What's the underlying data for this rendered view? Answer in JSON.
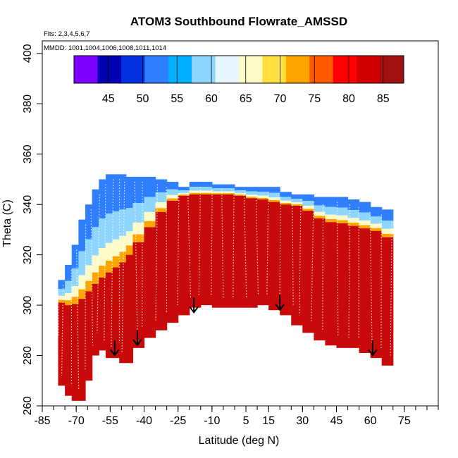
{
  "chart_data": {
    "type": "heatmap",
    "title": "ATOM3 Southbound Flowrate_AMSSD",
    "subtitle_flights": "Flts: 2,3,4,5,6,7",
    "subtitle_dates": "MMDD: 1001,1004,1006,1008,1011,1014",
    "xlabel": "Latitude (deg N)",
    "ylabel": "Theta (C)",
    "xlim": [
      -85,
      90
    ],
    "ylim": [
      260,
      405
    ],
    "x_ticks": [
      -85,
      -70,
      -55,
      -40,
      -25,
      -10,
      5,
      15,
      30,
      45,
      60,
      75
    ],
    "y_ticks": [
      260,
      280,
      300,
      320,
      340,
      360,
      380,
      400
    ],
    "colorbar": {
      "ticks": [
        45,
        50,
        55,
        60,
        65,
        70,
        75,
        80,
        85
      ],
      "range": [
        40,
        88
      ],
      "colors": [
        "#7b00ff",
        "#0000b0",
        "#0030e0",
        "#2f7fff",
        "#00b0ff",
        "#8fd6ff",
        "#e8f6ff",
        "#fffbc8",
        "#ffe040",
        "#ffa500",
        "#ff5a00",
        "#ff0000",
        "#d00000",
        "#a01010"
      ]
    },
    "arrows_lat": [
      -53,
      -43,
      -18,
      20,
      61
    ],
    "arrows_theta": [
      286,
      290,
      303,
      304,
      286
    ],
    "cloud": {
      "lat": [
        -78,
        -75,
        -72,
        -69,
        -66,
        -63,
        -60,
        -57,
        -54,
        -51,
        -48,
        -45,
        -40,
        -35,
        -30,
        -25,
        -20,
        -15,
        -10,
        -5,
        0,
        5,
        10,
        15,
        20,
        25,
        30,
        35,
        40,
        45,
        50,
        55,
        60,
        65,
        70
      ],
      "theta_low": [
        284,
        268,
        264,
        262,
        270,
        280,
        285,
        282,
        279,
        281,
        277,
        283,
        287,
        290,
        293,
        296,
        299,
        300,
        300,
        299,
        299,
        299,
        300,
        300,
        298,
        296,
        292,
        289,
        286,
        284,
        283,
        283,
        281,
        279,
        276
      ],
      "theta_high": [
        306,
        310,
        316,
        324,
        334,
        340,
        346,
        350,
        352,
        352,
        351,
        351,
        351,
        350,
        349,
        346,
        347,
        349,
        348,
        348,
        347,
        347,
        346,
        347,
        345,
        344,
        344,
        343,
        342,
        343,
        342,
        341,
        339,
        338,
        335
      ],
      "core_top": [
        302,
        300,
        300,
        301,
        304,
        307,
        310,
        312,
        314,
        316,
        318,
        322,
        328,
        334,
        340,
        343,
        344,
        344,
        344,
        344,
        344,
        343,
        342,
        342,
        340,
        340,
        339,
        336,
        333,
        333,
        332,
        331,
        330,
        329,
        325
      ]
    }
  }
}
